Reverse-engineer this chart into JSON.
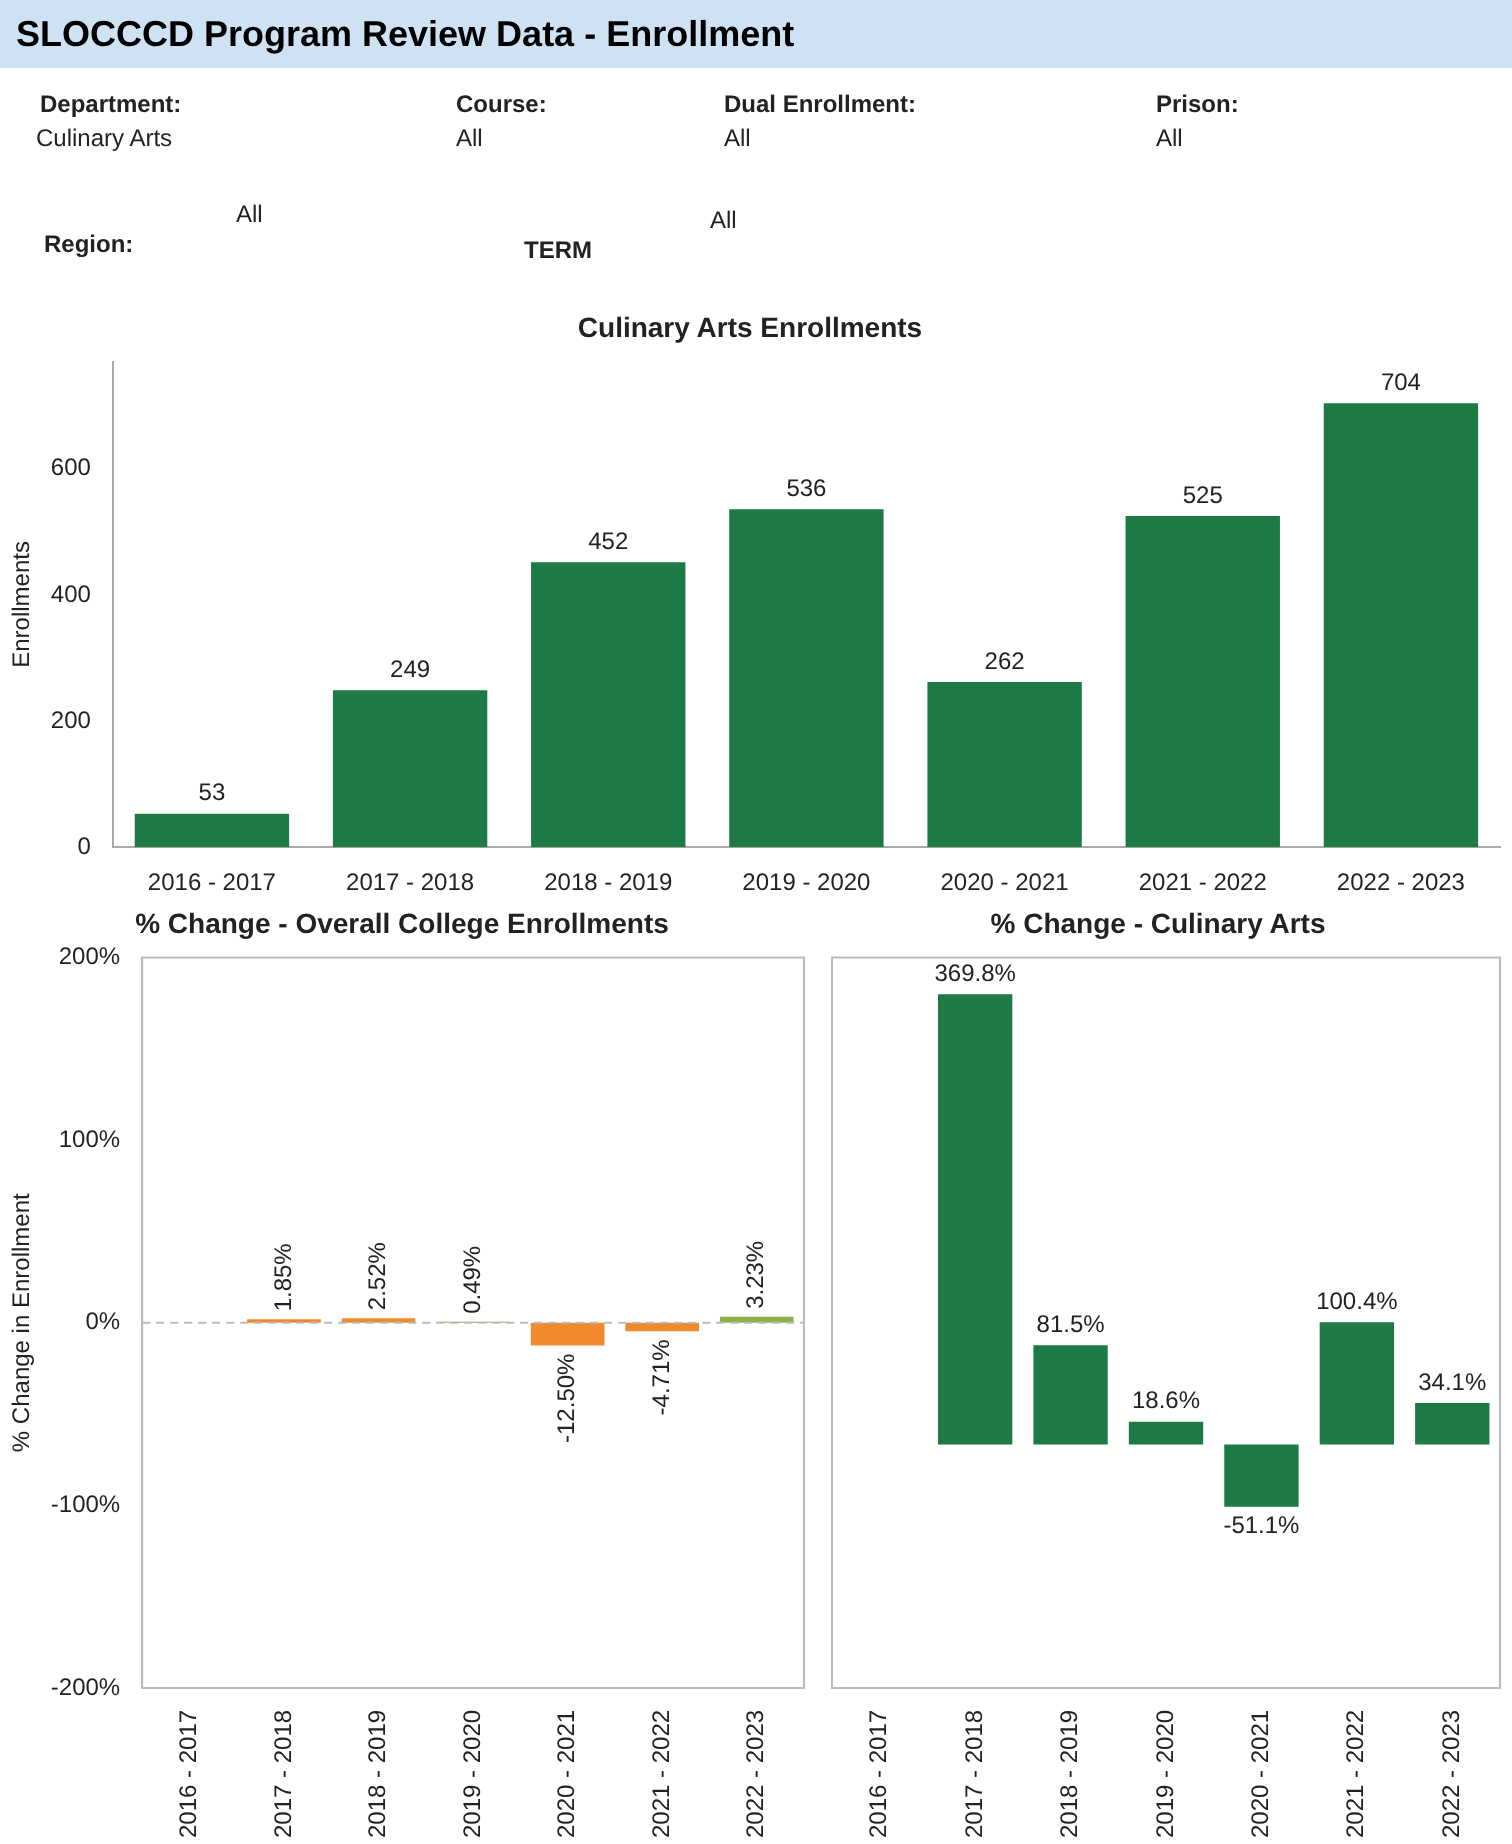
{
  "chart_data": [
    {
      "type": "other",
      "title": "SLOCCCD Program Review Data - Enrollment",
      "annotations": [
        "Department:",
        "Culinary Arts",
        "Course:",
        "All",
        "Dual Enrollment:",
        "All",
        "Prison:",
        "All",
        "Region:",
        "All",
        "TERM",
        "All"
      ]
    },
    {
      "type": "bar",
      "title": "Culinary Arts Enrollments",
      "ylabel": "Enrollments",
      "categories": [
        "2016 - 2017",
        "2017 - 2018",
        "2018 - 2019",
        "2019 - 2020",
        "2020 - 2021",
        "2021 - 2022",
        "2022 - 2023"
      ],
      "values": [
        53,
        249,
        452,
        536,
        262,
        525,
        704
      ],
      "color": "#1d7a45",
      "ylim": [
        0,
        770
      ],
      "yticks": [
        0,
        200,
        400,
        600
      ],
      "grid": false,
      "data_labels": true
    },
    {
      "type": "bar",
      "title": "% Change - Overall College Enrollments",
      "ylabel": "% Change in Enrollment",
      "categories": [
        "2016 - 2017",
        "2017 - 2018",
        "2018 - 2019",
        "2019 - 2020",
        "2020 - 2021",
        "2021 - 2022",
        "2022 - 2023"
      ],
      "values": [
        null,
        1.85,
        2.52,
        0.49,
        -12.5,
        -4.71,
        3.23
      ],
      "colors": [
        "#f08a2c",
        "#f08a2c",
        "#f08a2c",
        "#8db04a",
        "#f08a2c",
        "#f08a2c",
        "#8db04a"
      ],
      "value_labels": [
        null,
        "1.85%",
        "2.52%",
        "0.49%",
        "-12.50%",
        "-4.71%",
        "3.23%"
      ],
      "ylim": [
        -200,
        200
      ],
      "yticks": [
        {
          "value": -200,
          "label": "-200%"
        },
        {
          "value": -100,
          "label": "-100%"
        },
        {
          "value": 0,
          "label": "0%"
        },
        {
          "value": 100,
          "label": "100%"
        },
        {
          "value": 200,
          "label": "200%"
        }
      ],
      "ref_lines": [
        {
          "axis": "y",
          "value": 0,
          "color": "#bbbbbb",
          "line_style": "dashed"
        }
      ],
      "grid": false
    },
    {
      "type": "bar",
      "title": "% Change - Culinary Arts",
      "categories": [
        "2016 - 2017",
        "2017 - 2018",
        "2018 - 2019",
        "2019 - 2020",
        "2020 - 2021",
        "2021 - 2022",
        "2022 - 2023"
      ],
      "values": [
        null,
        369.8,
        81.5,
        18.6,
        -51.1,
        100.4,
        34.1
      ],
      "color": "#1d7a45",
      "value_labels": [
        null,
        "369.8%",
        "81.5%",
        "18.6%",
        "-51.1%",
        "100.4%",
        "34.1%"
      ],
      "ylim": [
        -200,
        400
      ],
      "tick_labels": "x",
      "grid": false
    }
  ]
}
